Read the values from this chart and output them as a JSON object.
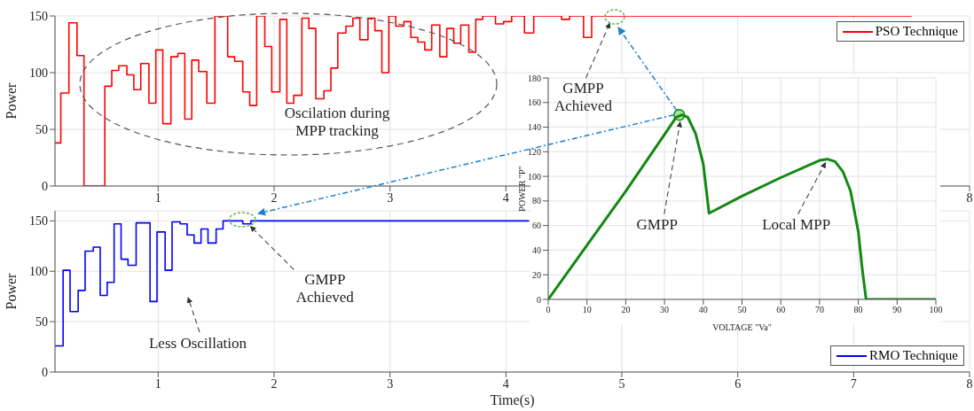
{
  "chart_data": [
    {
      "type": "step",
      "ylabel": "Power",
      "xlim": [
        0.11,
        8
      ],
      "xticks": [
        1,
        2,
        3,
        4,
        {
          "value": 5,
          "label": null
        },
        {
          "value": 6,
          "label": null
        },
        {
          "value": 7,
          "label": null
        },
        8
      ],
      "ylim": [
        0,
        150
      ],
      "yticks": [
        0,
        50,
        100,
        150
      ],
      "grid": true,
      "legend": "top right",
      "marker": "none",
      "series": [
        {
          "name": "PSO Technique",
          "color": "#ff0000",
          "x": [
            0.11,
            0.16,
            0.23,
            0.3,
            0.36,
            0.54,
            0.6,
            0.66,
            0.73,
            0.79,
            0.85,
            0.92,
            0.98,
            1.04,
            1.11,
            1.17,
            1.23,
            1.29,
            1.35,
            1.42,
            1.49,
            1.6,
            1.66,
            1.73,
            1.79,
            1.85,
            1.92,
            1.98,
            2.05,
            2.11,
            2.17,
            2.24,
            2.3,
            2.36,
            2.43,
            2.49,
            2.55,
            2.62,
            2.68,
            2.74,
            2.81,
            2.87,
            2.93,
            2.99,
            3.05,
            3.12,
            3.18,
            3.24,
            3.3,
            3.36,
            3.43,
            3.49,
            3.55,
            3.61,
            3.68,
            3.74,
            3.8,
            3.91,
            3.98,
            4.05,
            4.16,
            4.24,
            4.48,
            4.55,
            4.67,
            4.74,
            7.5
          ],
          "values": [
            38,
            82,
            144,
            115,
            0,
            88,
            102,
            106,
            98,
            85,
            108,
            73,
            120,
            55,
            114,
            117,
            59,
            111,
            101,
            73,
            150,
            114,
            110,
            83,
            71,
            150,
            123,
            83,
            147,
            73,
            80,
            148,
            139,
            77,
            84,
            104,
            135,
            141,
            148,
            129,
            148,
            137,
            100,
            150,
            141,
            145,
            131,
            127,
            120,
            142,
            114,
            139,
            126,
            142,
            118,
            147,
            150,
            143,
            145,
            150,
            135,
            150,
            147,
            150,
            131,
            150,
            150
          ]
        }
      ],
      "annotations": [
        "Oscilation during MPP tracking",
        {
          "text": "GMPP Achieved",
          "x": 4.92,
          "y": 150
        }
      ]
    },
    {
      "type": "step",
      "xlabel": "Time(s)",
      "ylabel": "Power",
      "xlim": [
        0.11,
        8
      ],
      "xticks": [
        1,
        2,
        3,
        4,
        5,
        6,
        7,
        8
      ],
      "ylim": [
        0,
        160
      ],
      "yticks": [
        0,
        50,
        100,
        150
      ],
      "grid": true,
      "legend": "bottom right",
      "marker": "none",
      "series": [
        {
          "name": "RMO Technique",
          "color": "#0000ff",
          "x": [
            0.11,
            0.18,
            0.24,
            0.31,
            0.37,
            0.44,
            0.5,
            0.56,
            0.62,
            0.68,
            0.74,
            0.81,
            0.93,
            0.99,
            1.06,
            1.12,
            1.19,
            1.25,
            1.31,
            1.37,
            1.43,
            1.5,
            1.56,
            1.73,
            1.8,
            4.2
          ],
          "values": [
            26,
            101,
            60,
            81,
            120,
            124,
            76,
            89,
            147,
            112,
            106,
            148,
            70,
            139,
            101,
            149,
            147,
            136,
            128,
            142,
            128,
            142,
            150,
            147,
            150,
            150
          ]
        }
      ],
      "annotations": [
        {
          "text": "GMPP Achieved",
          "x": 1.75,
          "y": 150
        },
        "Less Oscillation"
      ]
    },
    {
      "type": "line",
      "xlabel": "VOLTAGE \"Va\"",
      "ylabel": "POWER \"P\"",
      "xlim": [
        0,
        100
      ],
      "xticks": [
        0,
        10,
        20,
        30,
        40,
        50,
        60,
        70,
        80,
        90,
        100
      ],
      "ylim": [
        0,
        180
      ],
      "yticks": [
        0,
        20,
        40,
        60,
        80,
        100,
        120,
        140,
        160,
        180
      ],
      "grid": true,
      "marker": "none",
      "series": [
        {
          "color": "#118811",
          "x": [
            0,
            10,
            20,
            30,
            33,
            34.5,
            36,
            38,
            40,
            41.5,
            50,
            60,
            70,
            72,
            74,
            76,
            78,
            80,
            81,
            82,
            100
          ],
          "values": [
            0,
            44,
            88,
            134,
            148,
            150,
            148,
            135,
            110,
            70,
            84,
            99,
            113,
            114,
            112,
            104,
            88,
            55,
            25,
            0,
            0
          ]
        }
      ],
      "annotations": [
        {
          "text": "GMPP",
          "x": 34.5,
          "y": 150
        },
        {
          "text": "Local MPP",
          "x": 72,
          "y": 114
        }
      ]
    }
  ]
}
